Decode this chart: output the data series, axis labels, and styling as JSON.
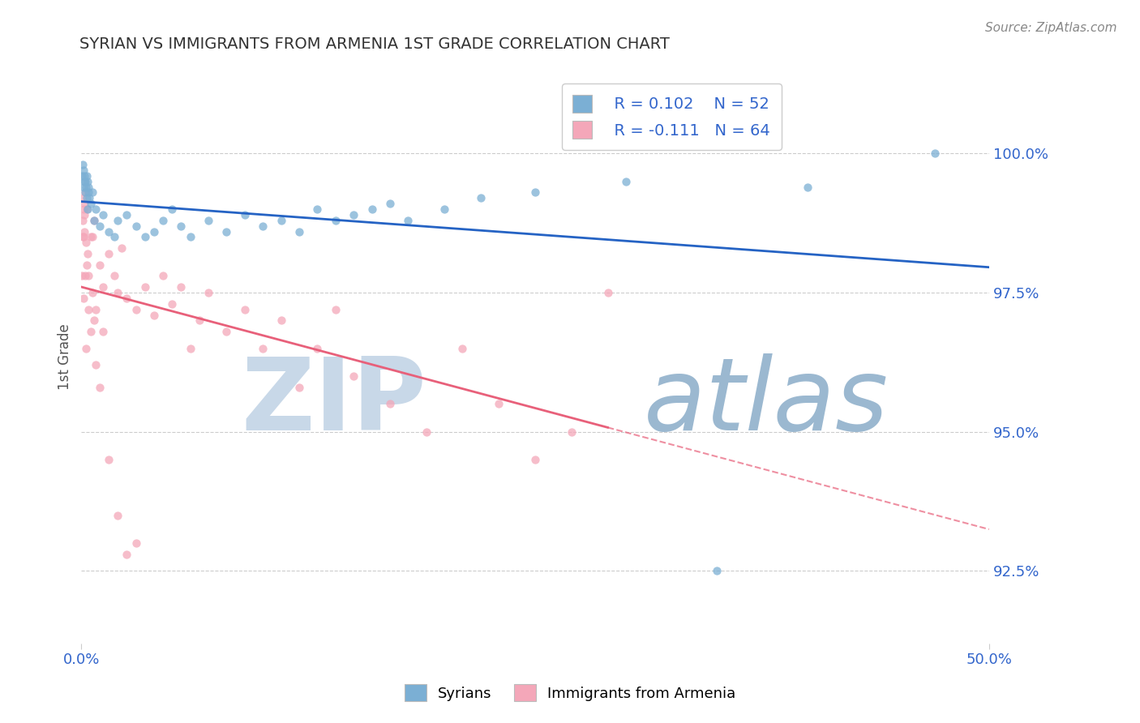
{
  "title": "SYRIAN VS IMMIGRANTS FROM ARMENIA 1ST GRADE CORRELATION CHART",
  "source": "Source: ZipAtlas.com",
  "ylabel": "1st Grade",
  "yticks": [
    92.5,
    95.0,
    97.5,
    100.0
  ],
  "ytick_labels": [
    "92.5%",
    "95.0%",
    "97.5%",
    "100.0%"
  ],
  "xlim": [
    0.0,
    50.0
  ],
  "ylim": [
    91.2,
    101.5
  ],
  "blue_label": "Syrians",
  "pink_label": "Immigrants from Armenia",
  "blue_R": "R = 0.102",
  "blue_N": "N = 52",
  "pink_R": "R = -0.111",
  "pink_N": "N = 64",
  "blue_color": "#7BAFD4",
  "pink_color": "#F4A7B9",
  "blue_line_color": "#2563C4",
  "pink_line_color": "#E8607A",
  "watermark_zip": "ZIP",
  "watermark_atlas": "atlas",
  "watermark_color_zip": "#C8D8E8",
  "watermark_color_atlas": "#9BB8D0",
  "background_color": "#FFFFFF",
  "blue_x": [
    0.05,
    0.08,
    0.1,
    0.12,
    0.15,
    0.18,
    0.2,
    0.22,
    0.25,
    0.28,
    0.3,
    0.32,
    0.35,
    0.38,
    0.4,
    0.45,
    0.5,
    0.6,
    0.7,
    0.8,
    1.0,
    1.2,
    1.5,
    1.8,
    2.0,
    2.5,
    3.0,
    3.5,
    4.0,
    4.5,
    5.0,
    5.5,
    6.0,
    7.0,
    8.0,
    9.0,
    10.0,
    11.0,
    12.0,
    13.0,
    14.0,
    15.0,
    16.0,
    17.0,
    18.0,
    20.0,
    22.0,
    25.0,
    30.0,
    35.0,
    40.0,
    47.0
  ],
  "blue_y": [
    99.6,
    99.8,
    99.4,
    99.7,
    99.5,
    99.6,
    99.3,
    99.5,
    99.4,
    99.6,
    99.2,
    99.5,
    99.0,
    99.3,
    99.4,
    99.2,
    99.1,
    99.3,
    98.8,
    99.0,
    98.7,
    98.9,
    98.6,
    98.5,
    98.8,
    98.9,
    98.7,
    98.5,
    98.6,
    98.8,
    99.0,
    98.7,
    98.5,
    98.8,
    98.6,
    98.9,
    98.7,
    98.8,
    98.6,
    99.0,
    98.8,
    98.9,
    99.0,
    99.1,
    98.8,
    99.0,
    99.2,
    99.3,
    99.5,
    92.5,
    99.4,
    100.0
  ],
  "pink_x": [
    0.05,
    0.08,
    0.1,
    0.12,
    0.15,
    0.18,
    0.2,
    0.25,
    0.3,
    0.35,
    0.4,
    0.5,
    0.6,
    0.7,
    0.8,
    1.0,
    1.2,
    1.5,
    1.8,
    2.0,
    2.2,
    2.5,
    3.0,
    3.5,
    4.0,
    4.5,
    5.0,
    5.5,
    6.0,
    6.5,
    7.0,
    8.0,
    9.0,
    10.0,
    11.0,
    12.0,
    13.0,
    14.0,
    15.0,
    17.0,
    19.0,
    21.0,
    23.0,
    25.0,
    27.0,
    29.0
  ],
  "pink_y": [
    99.2,
    98.8,
    99.0,
    98.5,
    99.1,
    98.6,
    99.3,
    98.4,
    99.0,
    98.2,
    97.8,
    98.5,
    97.5,
    98.8,
    97.2,
    98.0,
    97.6,
    98.2,
    97.8,
    97.5,
    98.3,
    97.4,
    97.2,
    97.6,
    97.1,
    97.8,
    97.3,
    97.6,
    96.5,
    97.0,
    97.5,
    96.8,
    97.2,
    96.5,
    97.0,
    95.8,
    96.5,
    97.2,
    96.0,
    95.5,
    95.0,
    96.5,
    95.5,
    94.5,
    95.0,
    97.5
  ],
  "pink_x_extra": [
    0.05,
    0.08,
    0.1,
    0.15,
    0.2,
    0.25,
    0.3,
    0.4,
    0.5,
    0.6,
    0.7,
    0.8,
    1.0,
    1.2,
    1.5,
    2.0,
    2.5,
    3.0
  ],
  "pink_y_extra": [
    97.8,
    98.5,
    97.4,
    98.9,
    97.8,
    96.5,
    98.0,
    97.2,
    96.8,
    98.5,
    97.0,
    96.2,
    95.8,
    96.8,
    94.5,
    93.5,
    92.8,
    93.0
  ]
}
